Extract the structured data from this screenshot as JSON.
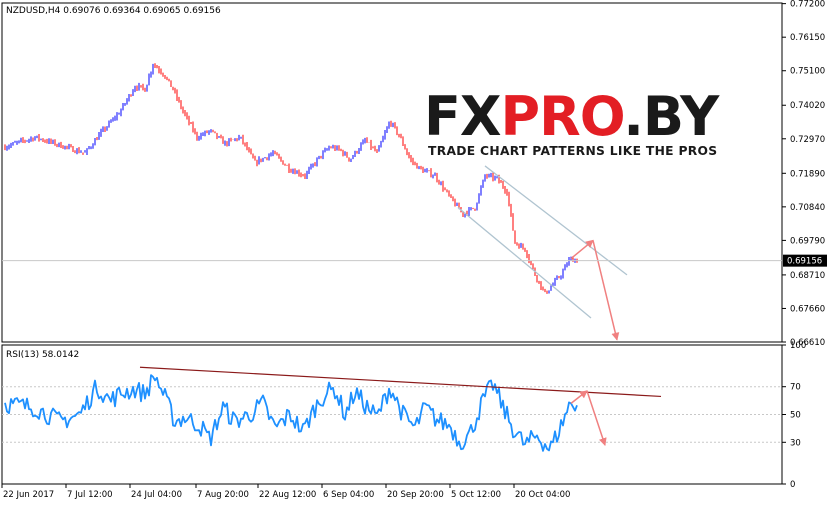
{
  "window": {
    "header": "NZDUSD,H4  0.69076  0.69364  0.69065  0.69156",
    "current_price": "0.69156",
    "background": "#ffffff",
    "up_color": "#0000ff",
    "down_color": "#ff0000",
    "rsi_color": "#1e90ff",
    "trendline_color": "#8b1a1a",
    "arrow_color": "#f08080",
    "channel_color": "#b0c4d0"
  },
  "logo": {
    "fx": "FX",
    "pro": "PRO",
    "by": ".BY",
    "tagline": "TRADE CHART PATTERNS LIKE THE PROS"
  },
  "chart_data": [
    {
      "type": "candlestick",
      "title": "NZDUSD,H4",
      "ohlc_label": "0.69076  0.69364  0.69065  0.69156",
      "ylim": [
        0.6661,
        0.7722
      ],
      "y_ticks": [
        "0.77200",
        "0.76150",
        "0.75100",
        "0.74020",
        "0.72970",
        "0.71890",
        "0.70840",
        "0.69790",
        "0.68710",
        "0.67660",
        "0.66610"
      ],
      "y_tick_values": [
        0.772,
        0.7615,
        0.751,
        0.7402,
        0.7297,
        0.7189,
        0.7084,
        0.6979,
        0.6871,
        0.6766,
        0.6661
      ],
      "x_tick_labels": [
        "22 Jun 2017",
        "7 Jul 12:00",
        "24 Jul 04:00",
        "7 Aug 20:00",
        "22 Aug 12:00",
        "6 Sep 04:00",
        "20 Sep 20:00",
        "5 Oct 12:00",
        "20 Oct 04:00"
      ],
      "last_price": 0.69156,
      "anchor_x": [
        0,
        10,
        30,
        60,
        80,
        95,
        115,
        130,
        140,
        148,
        158,
        168,
        178,
        192,
        205,
        220,
        235,
        250,
        268,
        285,
        300,
        315,
        325,
        335,
        345,
        360,
        372,
        385,
        395,
        405,
        415,
        430,
        445,
        458,
        470,
        480,
        492,
        502,
        510,
        520,
        530,
        540,
        548,
        556,
        565,
        573
      ],
      "anchor_price": [
        0.7272,
        0.7282,
        0.7302,
        0.7272,
        0.7252,
        0.7312,
        0.7382,
        0.7462,
        0.7452,
        0.7532,
        0.7502,
        0.7452,
        0.7382,
        0.7302,
        0.7322,
        0.7282,
        0.7302,
        0.7222,
        0.7252,
        0.7202,
        0.7182,
        0.7242,
        0.7272,
        0.7262,
        0.7232,
        0.7292,
        0.7252,
        0.7352,
        0.7302,
        0.7232,
        0.7202,
        0.7182,
        0.7112,
        0.7062,
        0.7082,
        0.7182,
        0.7172,
        0.7132,
        0.6972,
        0.6952,
        0.6872,
        0.6812,
        0.6842,
        0.6872,
        0.6922,
        0.6915
      ],
      "channel": {
        "upper": [
          [
            480,
            0.7212
          ],
          [
            622,
            0.6871
          ]
        ],
        "lower": [
          [
            453,
            0.7082
          ],
          [
            586,
            0.6736
          ]
        ]
      },
      "arrows": [
        [
          [
            566,
            0.6922
          ],
          [
            588,
            0.6979
          ]
        ],
        [
          [
            588,
            0.6979
          ],
          [
            612,
            0.6668
          ]
        ]
      ]
    },
    {
      "type": "line",
      "title": "RSI(13)",
      "value_label": "58.0142",
      "ylim": [
        0,
        100
      ],
      "y_ticks": [
        100,
        70,
        50,
        30,
        0
      ],
      "anchor_x": [
        0,
        30,
        55,
        75,
        92,
        105,
        118,
        130,
        140,
        150,
        160,
        170,
        180,
        195,
        205,
        218,
        230,
        245,
        258,
        270,
        285,
        298,
        310,
        320,
        330,
        340,
        350,
        360,
        372,
        385,
        398,
        410,
        420,
        432,
        445,
        455,
        465,
        478,
        488,
        498,
        508,
        520,
        532,
        545,
        555,
        565,
        573
      ],
      "anchor_value": [
        58,
        55,
        45,
        50,
        70,
        60,
        66,
        68,
        65,
        78,
        62,
        45,
        48,
        42,
        32,
        55,
        45,
        50,
        58,
        40,
        50,
        38,
        55,
        65,
        68,
        50,
        66,
        57,
        48,
        70,
        50,
        40,
        55,
        46,
        42,
        30,
        36,
        60,
        72,
        55,
        40,
        28,
        35,
        25,
        40,
        58,
        58
      ],
      "trendline": [
        [
          135,
          84
        ],
        [
          656,
          63
        ]
      ],
      "arrows": [
        [
          [
            566,
            58
          ],
          [
            582,
            67
          ]
        ],
        [
          [
            582,
            67
          ],
          [
            600,
            28
          ]
        ]
      ]
    }
  ]
}
